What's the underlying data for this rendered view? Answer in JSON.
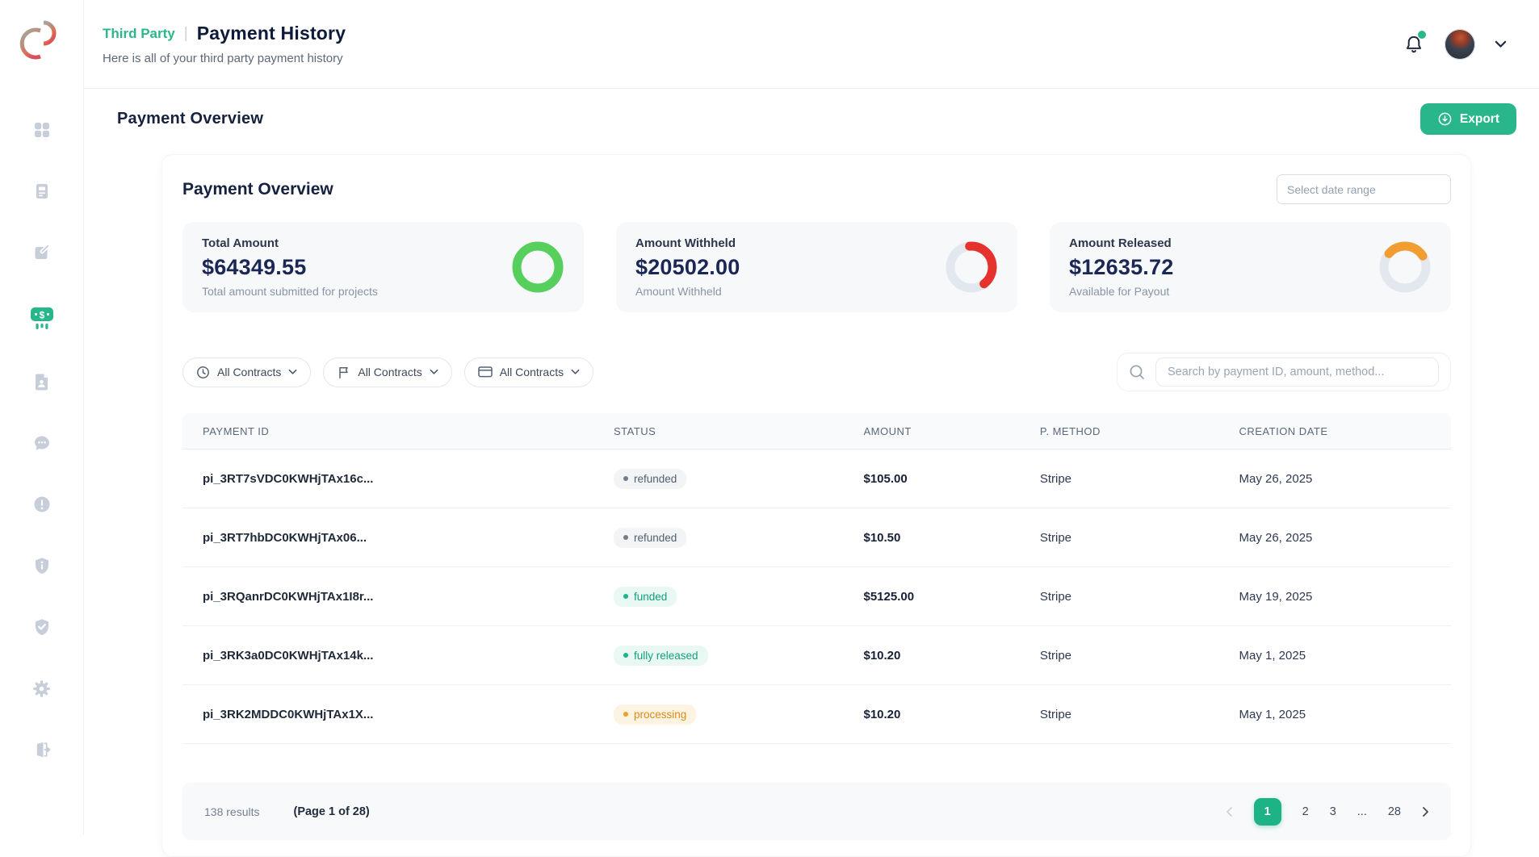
{
  "colors": {
    "brand_green": "#2ab68b",
    "heading_navy": "#0e1a3a",
    "donut_green": "#56cf5d",
    "donut_red": "#e5322c",
    "donut_orange": "#f29d32",
    "donut_track": "#e3e8ef"
  },
  "sidebar": {
    "items": [
      {
        "icon": "dashboard-grid-icon",
        "active": false
      },
      {
        "icon": "document-icon",
        "active": false
      },
      {
        "icon": "edit-icon",
        "active": false
      },
      {
        "icon": "payments-icon",
        "active": true
      },
      {
        "icon": "contract-file-icon",
        "active": false
      },
      {
        "icon": "messages-icon",
        "active": false
      },
      {
        "icon": "alert-circle-icon",
        "active": false
      },
      {
        "icon": "shield-info-icon",
        "active": false
      },
      {
        "icon": "shield-check-icon",
        "active": false
      },
      {
        "icon": "settings-gear-icon",
        "active": false
      },
      {
        "icon": "logout-icon",
        "active": false
      }
    ]
  },
  "header": {
    "breadcrumb": "Third Party",
    "separator": "|",
    "title": "Payment History",
    "subtitle": "Here is all of your third party payment history"
  },
  "toolbar": {
    "section_title": "Payment Overview",
    "export_label": "Export"
  },
  "overview": {
    "heading": "Payment Overview",
    "date_range_placeholder": "Select date range",
    "cards": [
      {
        "label": "Total Amount",
        "value": "$64349.55",
        "sub": "Total amount submitted for projects",
        "ring": {
          "percent": 100,
          "start": 0,
          "color": "#56cf5d"
        }
      },
      {
        "label": "Amount Withheld",
        "value": "$20502.00",
        "sub": "Amount Withheld",
        "ring": {
          "percent": 41,
          "start": -95,
          "color": "#e5322c"
        }
      },
      {
        "label": "Amount Released",
        "value": "$12635.72",
        "sub": "Available for Payout",
        "ring": {
          "percent": 30,
          "start": -140,
          "color": "#f29d32"
        }
      }
    ]
  },
  "filters": {
    "items": [
      {
        "icon": "clock-icon",
        "label": "All Contracts"
      },
      {
        "icon": "flag-icon",
        "label": "All Contracts"
      },
      {
        "icon": "credit-card-icon",
        "label": "All Contracts"
      }
    ]
  },
  "search": {
    "placeholder": "Search by payment ID, amount, method..."
  },
  "table": {
    "columns": [
      "PAYMENT ID",
      "STATUS",
      "AMOUNT",
      "P. METHOD",
      "CREATION DATE"
    ],
    "rows": [
      {
        "id": "pi_3RT7sVDC0KWHjTAx16c...",
        "status": "refunded",
        "amount": "$105.00",
        "method": "Stripe",
        "date": "May 26, 2025"
      },
      {
        "id": "pi_3RT7hbDC0KWHjTAx06...",
        "status": "refunded",
        "amount": "$10.50",
        "method": "Stripe",
        "date": "May 26, 2025"
      },
      {
        "id": "pi_3RQanrDC0KWHjTAx1I8r...",
        "status": "funded",
        "amount": "$5125.00",
        "method": "Stripe",
        "date": "May 19, 2025"
      },
      {
        "id": "pi_3RK3a0DC0KWHjTAx14k...",
        "status": "fully released",
        "amount": "$10.20",
        "method": "Stripe",
        "date": "May 1, 2025"
      },
      {
        "id": "pi_3RK2MDDC0KWHjTAx1X...",
        "status": "processing",
        "amount": "$10.20",
        "method": "Stripe",
        "date": "May 1, 2025"
      }
    ]
  },
  "pagination": {
    "results": "138 results",
    "page_info": "(Page 1 of 28)",
    "pages": [
      "1",
      "2",
      "3",
      "...",
      "28"
    ],
    "active_page": "1"
  }
}
